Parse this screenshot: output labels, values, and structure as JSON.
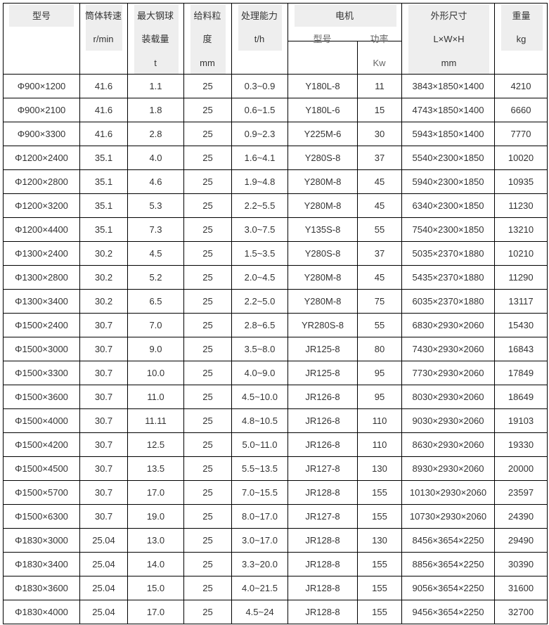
{
  "header": {
    "model": "型号",
    "speed": [
      "筒体转速",
      "r/min"
    ],
    "ball": [
      "最大钢球",
      "装载量",
      "t"
    ],
    "feed": [
      "给料粒",
      "度",
      "mm"
    ],
    "capacity": [
      "处理能力",
      "t/h"
    ],
    "motor": "电机",
    "motor_model": "型号",
    "motor_power": [
      "功率",
      "Kw"
    ],
    "size": [
      "外形尺寸",
      "L×W×H",
      "mm"
    ],
    "weight": [
      "重量",
      "kg"
    ]
  },
  "rows": [
    [
      "Φ900×1200",
      "41.6",
      "1.1",
      "25",
      "0.3~0.9",
      "Y180L-8",
      "11",
      "3843×1850×1400",
      "4210"
    ],
    [
      "Φ900×2100",
      "41.6",
      "1.8",
      "25",
      "0.6~1.5",
      "Y180L-6",
      "15",
      "4743×1850×1400",
      "6660"
    ],
    [
      "Φ900×3300",
      "41.6",
      "2.8",
      "25",
      "0.9~2.3",
      "Y225M-6",
      "30",
      "5943×1850×1400",
      "7770"
    ],
    [
      "Φ1200×2400",
      "35.1",
      "4.0",
      "25",
      "1.6~4.1",
      "Y280S-8",
      "37",
      "5540×2300×1850",
      "10020"
    ],
    [
      "Φ1200×2800",
      "35.1",
      "4.6",
      "25",
      "1.9~4.8",
      "Y280M-8",
      "45",
      "5940×2300×1850",
      "10935"
    ],
    [
      "Φ1200×3200",
      "35.1",
      "5.3",
      "25",
      "2.2~5.5",
      "Y280M-8",
      "45",
      "6340×2300×1850",
      "11230"
    ],
    [
      "Φ1200×4400",
      "35.1",
      "7.3",
      "25",
      "3.0~7.5",
      "Y135S-8",
      "55",
      "7540×2300×1850",
      "13210"
    ],
    [
      "Φ1300×2400",
      "30.2",
      "4.5",
      "25",
      "1.5~3.5",
      "Y280S-8",
      "37",
      "5035×2370×1880",
      "10210"
    ],
    [
      "Φ1300×2800",
      "30.2",
      "5.2",
      "25",
      "2.0~4.5",
      "Y280M-8",
      "45",
      "5435×2370×1880",
      "11290"
    ],
    [
      "Φ1300×3400",
      "30.2",
      "6.5",
      "25",
      "2.2~5.0",
      "Y280M-8",
      "75",
      "6035×2370×1880",
      "13117"
    ],
    [
      "Φ1500×2400",
      "30.7",
      "7.0",
      "25",
      "2.8~6.5",
      "YR280S-8",
      "55",
      "6830×2930×2060",
      "15430"
    ],
    [
      "Φ1500×3000",
      "30.7",
      "9.0",
      "25",
      "3.5~8.0",
      "JR125-8",
      "80",
      "7430×2930×2060",
      "16843"
    ],
    [
      "Φ1500×3300",
      "30.7",
      "10.0",
      "25",
      "4.0~9.0",
      "JR125-8",
      "95",
      "7730×2930×2060",
      "17849"
    ],
    [
      "Φ1500×3600",
      "30.7",
      "11.0",
      "25",
      "4.5~10.0",
      "JR126-8",
      "95",
      "8030×2930×2060",
      "18649"
    ],
    [
      "Φ1500×4000",
      "30.7",
      "11.11",
      "25",
      "4.8~10.5",
      "JR126-8",
      "110",
      "9030×2930×2060",
      "19103"
    ],
    [
      "Φ1500×4200",
      "30.7",
      "12.5",
      "25",
      "5.0~11.0",
      "JR126-8",
      "110",
      "8630×2930×2060",
      "19330"
    ],
    [
      "Φ1500×4500",
      "30.7",
      "13.5",
      "25",
      "5.5~13.5",
      "JR127-8",
      "130",
      "8930×2930×2060",
      "20000"
    ],
    [
      "Φ1500×5700",
      "30.7",
      "17.0",
      "25",
      "7.0~15.5",
      "JR128-8",
      "155",
      "10130×2930×2060",
      "23597"
    ],
    [
      "Φ1500×6300",
      "30.7",
      "19.0",
      "25",
      "8.0~17.0",
      "JR127-8",
      "155",
      "10730×2930×2060",
      "24390"
    ],
    [
      "Φ1830×3000",
      "25.04",
      "13.0",
      "25",
      "3.0~17.0",
      "JR128-8",
      "130",
      "8456×3654×2250",
      "29490"
    ],
    [
      "Φ1830×3400",
      "25.04",
      "14.0",
      "25",
      "3.3~20.0",
      "JR128-8",
      "155",
      "8856×3654×2250",
      "30390"
    ],
    [
      "Φ1830×3600",
      "25.04",
      "15.0",
      "25",
      "4.0~21.5",
      "JR128-8",
      "155",
      "9056×3654×2250",
      "31600"
    ],
    [
      "Φ1830×4000",
      "25.04",
      "17.0",
      "25",
      "4.5~24",
      "JR128-8",
      "155",
      "9456×3654×2250",
      "32700"
    ]
  ]
}
